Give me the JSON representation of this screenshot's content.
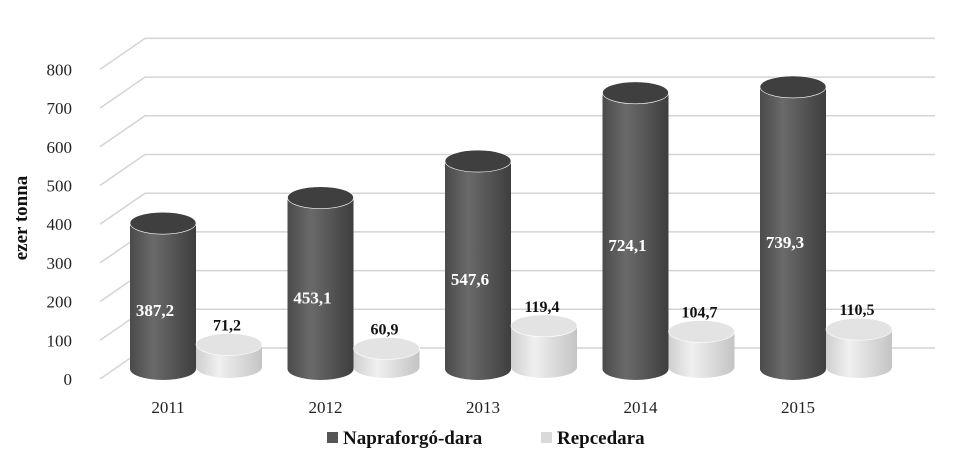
{
  "chart_data": {
    "type": "bar",
    "style": "3d-cylinder",
    "title": "",
    "xlabel": "",
    "ylabel": "ezer tonna",
    "ylim": [
      0,
      800
    ],
    "yticks": [
      "0",
      "100",
      "200",
      "300",
      "400",
      "500",
      "600",
      "700",
      "800"
    ],
    "ytick_values": [
      0,
      100,
      200,
      300,
      400,
      500,
      600,
      700,
      800
    ],
    "categories": [
      "2011",
      "2012",
      "2013",
      "2014",
      "2015"
    ],
    "series": [
      {
        "name": "Napraforgó-dara",
        "values": [
          387.2,
          453.1,
          547.6,
          724.1,
          739.3
        ],
        "labels": [
          "387,2",
          "453,1",
          "547,6",
          "724,1",
          "739,3"
        ],
        "color": "#555555"
      },
      {
        "name": "Repcedara",
        "values": [
          71.2,
          60.9,
          119.4,
          104.7,
          110.5
        ],
        "labels": [
          "71,2",
          "60,9",
          "119,4",
          "104,7",
          "110,5"
        ],
        "color": "#d9d9d9"
      }
    ],
    "grid": true,
    "legend_position": "bottom"
  }
}
